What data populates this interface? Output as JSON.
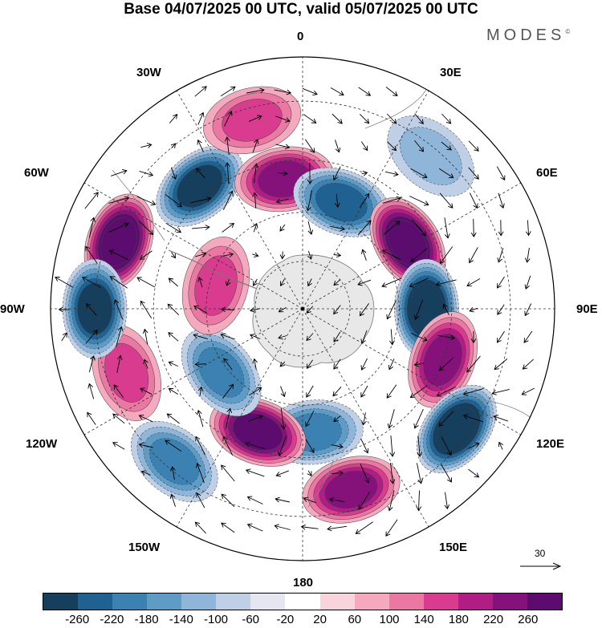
{
  "title": "Base 04/07/2025 00 UTC, valid 05/07/2025 00 UTC",
  "brand": {
    "name": "MODES",
    "mark": "©"
  },
  "longitude_labels": {
    "lon_0": "0",
    "lon_30e": "30E",
    "lon_60e": "60E",
    "lon_90e": "90E",
    "lon_120e": "120E",
    "lon_150e": "150E",
    "lon_180": "180",
    "lon_150w": "150W",
    "lon_120w": "120W",
    "lon_90w": "90W",
    "lon_60w": "60W",
    "lon_30w": "30W"
  },
  "reference_vector": {
    "label": "30"
  },
  "colorbar": {
    "ticks": [
      "-260",
      "-220",
      "-180",
      "-140",
      "-100",
      "-60",
      "-20",
      "20",
      "60",
      "100",
      "140",
      "180",
      "220",
      "260"
    ],
    "colors": [
      "#163f5e",
      "#1f6190",
      "#3b82b3",
      "#5e9cc6",
      "#8fb6d9",
      "#bfcfe6",
      "#e6e6f0",
      "#ffffff",
      "#f9d4dc",
      "#f4a9be",
      "#ea78a3",
      "#d93c8e",
      "#b01d85",
      "#85127a",
      "#5c0b6e"
    ]
  },
  "map": {
    "projection": "south-polar-stereographic",
    "anomalies": [
      {
        "lon": 290,
        "lat": -33,
        "value": 240
      },
      {
        "lon": 320,
        "lat": -42,
        "value": -180
      },
      {
        "lon": 352,
        "lat": -50,
        "value": 140
      },
      {
        "lon": 345,
        "lat": -33,
        "value": 60
      },
      {
        "lon": 20,
        "lat": -55,
        "value": -160
      },
      {
        "lon": 58,
        "lat": -52,
        "value": 250
      },
      {
        "lon": 90,
        "lat": -52,
        "value": -240
      },
      {
        "lon": 110,
        "lat": -45,
        "value": 160
      },
      {
        "lon": 128,
        "lat": -33,
        "value": -250
      },
      {
        "lon": 165,
        "lat": -35,
        "value": 140
      },
      {
        "lon": 175,
        "lat": -52,
        "value": -120
      },
      {
        "lon": 200,
        "lat": -50,
        "value": 200
      },
      {
        "lon": 220,
        "lat": -32,
        "value": -100
      },
      {
        "lon": 232,
        "lat": -58,
        "value": -100
      },
      {
        "lon": 250,
        "lat": -35,
        "value": 60
      },
      {
        "lon": 270,
        "lat": -30,
        "value": -200
      },
      {
        "lon": 285,
        "lat": -62,
        "value": 60
      },
      {
        "lon": 40,
        "lat": -32,
        "value": -40
      }
    ]
  }
}
